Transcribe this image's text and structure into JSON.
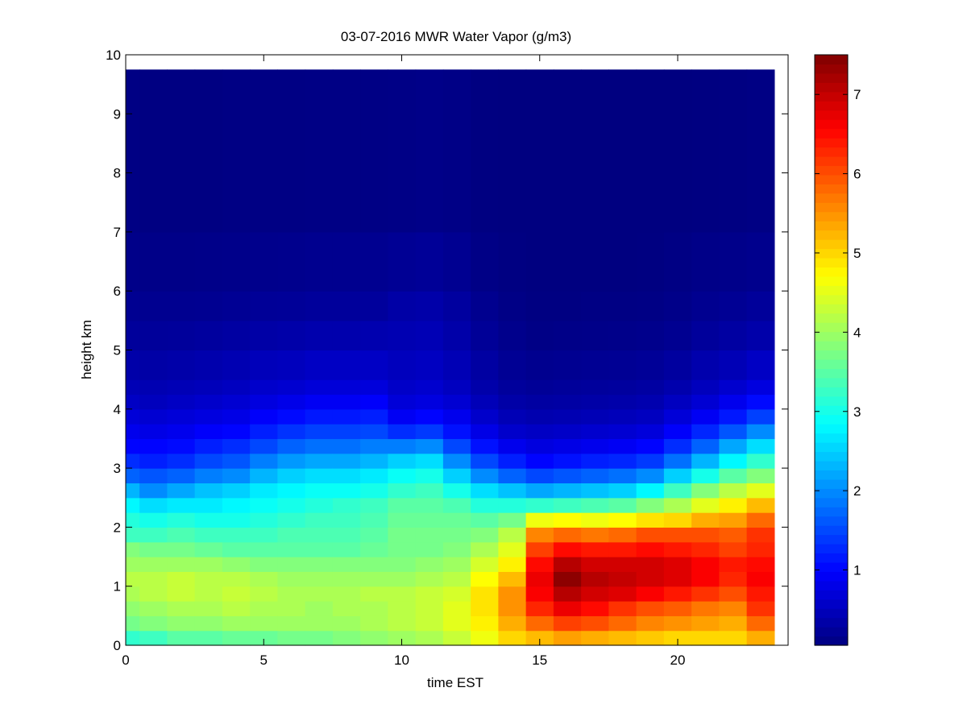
{
  "chart_data": {
    "type": "heatmap",
    "title": "03-07-2016 MWR Water Vapor (g/m3)",
    "xlabel": "time EST",
    "ylabel": "height km",
    "xlim": [
      0,
      24
    ],
    "ylim": [
      0,
      10
    ],
    "xticks": [
      0,
      5,
      10,
      15,
      20
    ],
    "yticks": [
      0,
      1,
      2,
      3,
      4,
      5,
      6,
      7,
      8,
      9,
      10
    ],
    "colorbar": {
      "colormap": "jet",
      "range": [
        0.05,
        7.5
      ],
      "ticks": [
        1,
        2,
        3,
        4,
        5,
        6,
        7
      ]
    },
    "grid": false,
    "x_extent": [
      0,
      23.5
    ],
    "y_extent": [
      0,
      9.75
    ],
    "time_hours": [
      0.5,
      1.5,
      2.5,
      3.5,
      4.5,
      5.5,
      6.5,
      7.5,
      8.5,
      9.5,
      10.5,
      11.5,
      12.5,
      13.5,
      14.5,
      15.5,
      16.5,
      17.5,
      18.5,
      19.5,
      20.5,
      21.5,
      22.5,
      23.5
    ],
    "profiles": {
      "height_km": [
        0.0,
        0.25,
        0.5,
        0.75,
        1.0,
        1.25,
        1.5,
        1.75,
        2.0,
        2.25,
        2.5,
        2.75,
        3.0,
        3.25,
        3.5,
        3.75,
        4.0,
        4.25,
        4.5,
        5.0,
        5.5,
        6.0,
        7.0,
        9.75
      ],
      "values_g_m3": [
        [
          3.2,
          3.7,
          3.9,
          4.1,
          4.2,
          4.0,
          3.8,
          3.3,
          3.1,
          2.8,
          2.3,
          1.7,
          1.3,
          1.0,
          0.85,
          0.7,
          0.55,
          0.45,
          0.35,
          0.25,
          0.18,
          0.12,
          0.08,
          0.06
        ],
        [
          3.3,
          3.8,
          4.0,
          4.2,
          4.2,
          4.0,
          3.7,
          3.3,
          3.0,
          2.6,
          2.0,
          1.6,
          1.2,
          1.0,
          0.8,
          0.65,
          0.5,
          0.42,
          0.33,
          0.24,
          0.17,
          0.11,
          0.07,
          0.05
        ],
        [
          3.5,
          3.9,
          4.1,
          4.3,
          4.3,
          4.0,
          3.7,
          3.4,
          3.1,
          2.7,
          2.2,
          1.7,
          1.3,
          1.05,
          0.85,
          0.7,
          0.55,
          0.45,
          0.35,
          0.25,
          0.17,
          0.11,
          0.07,
          0.05
        ],
        [
          3.5,
          3.9,
          4.1,
          4.2,
          4.2,
          4.0,
          3.6,
          3.3,
          3.0,
          2.7,
          2.4,
          1.9,
          1.5,
          1.2,
          0.95,
          0.75,
          0.6,
          0.48,
          0.38,
          0.27,
          0.18,
          0.12,
          0.07,
          0.05
        ],
        [
          3.6,
          4.0,
          4.2,
          4.3,
          4.2,
          3.9,
          3.5,
          3.3,
          3.0,
          2.8,
          2.5,
          2.0,
          1.6,
          1.3,
          1.0,
          0.8,
          0.65,
          0.52,
          0.42,
          0.3,
          0.2,
          0.13,
          0.08,
          0.05
        ],
        [
          3.6,
          4.0,
          4.1,
          4.2,
          4.1,
          3.8,
          3.5,
          3.3,
          3.1,
          2.9,
          2.7,
          2.3,
          1.9,
          1.5,
          1.2,
          0.95,
          0.75,
          0.6,
          0.48,
          0.33,
          0.22,
          0.14,
          0.08,
          0.05
        ],
        [
          3.7,
          4.0,
          4.1,
          4.1,
          4.0,
          3.8,
          3.5,
          3.4,
          3.2,
          3.0,
          2.8,
          2.5,
          2.1,
          1.7,
          1.35,
          1.05,
          0.82,
          0.64,
          0.5,
          0.35,
          0.23,
          0.15,
          0.08,
          0.05
        ],
        [
          3.7,
          4.0,
          4.0,
          4.1,
          4.0,
          3.8,
          3.5,
          3.4,
          3.3,
          3.1,
          2.9,
          2.6,
          2.2,
          1.8,
          1.45,
          1.15,
          0.9,
          0.7,
          0.55,
          0.38,
          0.25,
          0.16,
          0.09,
          0.05
        ],
        [
          3.8,
          4.0,
          4.1,
          4.1,
          4.0,
          3.8,
          3.5,
          3.4,
          3.3,
          3.2,
          2.9,
          2.6,
          2.2,
          1.8,
          1.45,
          1.15,
          0.9,
          0.7,
          0.55,
          0.38,
          0.25,
          0.16,
          0.09,
          0.05
        ],
        [
          3.9,
          4.1,
          4.1,
          4.2,
          4.0,
          3.8,
          3.6,
          3.5,
          3.4,
          3.3,
          3.0,
          2.7,
          2.3,
          1.9,
          1.5,
          1.2,
          0.95,
          0.72,
          0.56,
          0.4,
          0.26,
          0.17,
          0.09,
          0.05
        ],
        [
          4.0,
          4.2,
          4.2,
          4.2,
          4.0,
          3.8,
          3.7,
          3.7,
          3.6,
          3.5,
          3.2,
          2.9,
          2.5,
          1.9,
          1.3,
          0.9,
          0.7,
          0.58,
          0.5,
          0.42,
          0.33,
          0.2,
          0.1,
          0.06
        ],
        [
          4.1,
          4.3,
          4.3,
          4.3,
          4.1,
          3.9,
          3.7,
          3.7,
          3.6,
          3.5,
          3.3,
          3.0,
          2.6,
          2.0,
          1.4,
          1.0,
          0.75,
          0.62,
          0.53,
          0.44,
          0.35,
          0.22,
          0.11,
          0.06
        ],
        [
          4.3,
          4.5,
          4.5,
          4.4,
          4.2,
          4.0,
          3.8,
          3.7,
          3.6,
          3.4,
          3.0,
          2.5,
          2.0,
          1.5,
          1.1,
          0.85,
          0.65,
          0.52,
          0.44,
          0.35,
          0.28,
          0.18,
          0.1,
          0.05
        ],
        [
          4.6,
          4.8,
          4.9,
          4.9,
          4.7,
          4.4,
          4.1,
          3.8,
          3.5,
          3.1,
          2.6,
          2.0,
          1.5,
          1.1,
          0.8,
          0.6,
          0.46,
          0.36,
          0.3,
          0.22,
          0.16,
          0.1,
          0.06,
          0.04
        ],
        [
          5.0,
          5.3,
          5.5,
          5.5,
          5.2,
          4.8,
          4.5,
          4.2,
          3.7,
          3.1,
          2.4,
          1.7,
          1.2,
          0.85,
          0.6,
          0.45,
          0.34,
          0.26,
          0.2,
          0.14,
          0.1,
          0.07,
          0.05,
          0.04
        ],
        [
          5.2,
          5.8,
          6.3,
          6.6,
          6.7,
          6.5,
          6.1,
          5.6,
          4.6,
          3.2,
          2.2,
          1.5,
          1.0,
          0.75,
          0.55,
          0.4,
          0.3,
          0.22,
          0.16,
          0.1,
          0.07,
          0.05,
          0.04,
          0.03
        ],
        [
          5.4,
          6.1,
          6.7,
          7.1,
          7.4,
          7.1,
          6.5,
          5.8,
          4.7,
          3.3,
          2.3,
          1.6,
          1.1,
          0.8,
          0.58,
          0.42,
          0.32,
          0.24,
          0.18,
          0.11,
          0.07,
          0.05,
          0.04,
          0.03
        ],
        [
          5.3,
          6.0,
          6.5,
          6.9,
          7.1,
          6.9,
          6.4,
          5.7,
          4.6,
          3.4,
          2.4,
          1.7,
          1.2,
          0.85,
          0.62,
          0.45,
          0.34,
          0.26,
          0.19,
          0.12,
          0.08,
          0.05,
          0.04,
          0.03
        ],
        [
          5.2,
          5.8,
          6.2,
          6.8,
          7.0,
          6.9,
          6.4,
          5.8,
          4.7,
          3.5,
          2.5,
          1.8,
          1.25,
          0.9,
          0.65,
          0.48,
          0.36,
          0.27,
          0.2,
          0.13,
          0.08,
          0.05,
          0.04,
          0.03
        ],
        [
          5.1,
          5.6,
          6.0,
          6.6,
          6.9,
          6.9,
          6.5,
          6.0,
          4.9,
          3.8,
          2.8,
          2.0,
          1.4,
          1.0,
          0.72,
          0.52,
          0.4,
          0.3,
          0.22,
          0.14,
          0.09,
          0.06,
          0.04,
          0.03
        ],
        [
          5.0,
          5.5,
          5.9,
          6.4,
          6.8,
          6.8,
          6.4,
          6.0,
          5.0,
          4.1,
          3.3,
          2.5,
          1.8,
          1.3,
          0.95,
          0.7,
          0.52,
          0.38,
          0.28,
          0.18,
          0.12,
          0.08,
          0.05,
          0.03
        ],
        [
          5.0,
          5.4,
          5.7,
          6.2,
          6.6,
          6.6,
          6.3,
          6.0,
          5.3,
          4.5,
          3.8,
          3.0,
          2.3,
          1.7,
          1.25,
          0.9,
          0.66,
          0.5,
          0.38,
          0.25,
          0.17,
          0.11,
          0.06,
          0.04
        ],
        [
          5.0,
          5.3,
          5.6,
          6.0,
          6.3,
          6.4,
          6.1,
          5.9,
          5.4,
          4.8,
          4.2,
          3.5,
          2.8,
          2.2,
          1.6,
          1.15,
          0.85,
          0.62,
          0.45,
          0.3,
          0.2,
          0.13,
          0.07,
          0.04
        ],
        [
          5.3,
          5.8,
          6.2,
          6.4,
          6.6,
          6.5,
          6.3,
          6.2,
          5.8,
          5.2,
          4.5,
          3.8,
          3.2,
          2.6,
          2.0,
          1.45,
          1.05,
          0.75,
          0.55,
          0.36,
          0.24,
          0.15,
          0.08,
          0.05
        ]
      ]
    }
  }
}
